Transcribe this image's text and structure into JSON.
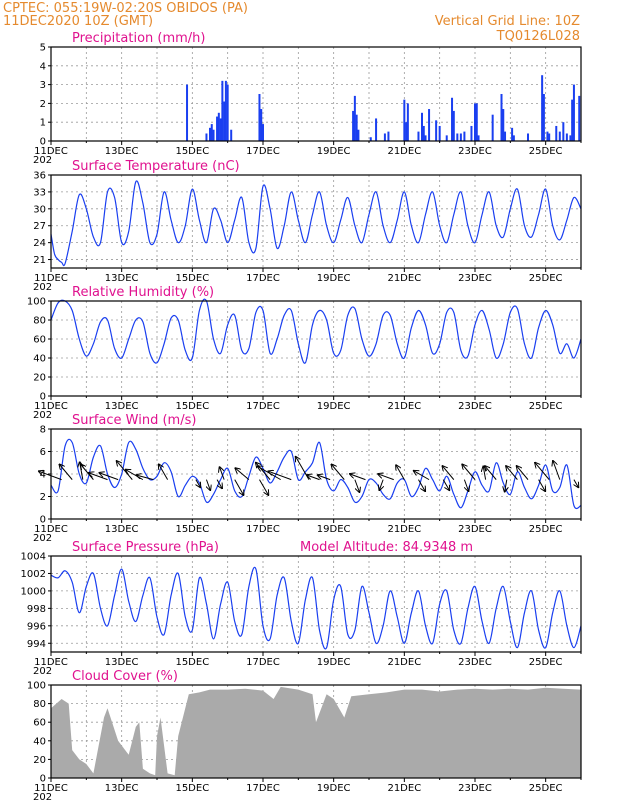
{
  "header": {
    "station": "CPTEC:  055:19W-02:20S   OBIDOS (PA)",
    "run": "11DEC2020 10Z (GMT)",
    "grid_note": "Vertical Grid Line: 10Z",
    "code": "TQ0126L028"
  },
  "x_axis": {
    "dates": [
      "11DEC",
      "13DEC",
      "15DEC",
      "17DEC",
      "19DEC",
      "21DEC",
      "23DEC",
      "25DEC"
    ],
    "cut_label": "202"
  },
  "colors": {
    "line": "#1a3ff0",
    "bars": "#1a3ff0",
    "cloud": "#aaaaaa",
    "title": "#e0128f",
    "header": "#e58a2e",
    "grid": "#9a9a9a"
  },
  "chart_data": [
    {
      "id": "precip",
      "type": "bar",
      "title": "Precipitation (mm/h)",
      "ylim": [
        0,
        5
      ],
      "yticks": [
        "0",
        "1",
        "2",
        "3",
        "4",
        "5"
      ],
      "x_unit": "day offset from 11DEC 10Z",
      "x": [
        3.85,
        4.4,
        4.5,
        4.55,
        4.6,
        4.7,
        4.75,
        4.8,
        4.85,
        4.9,
        4.95,
        5.0,
        5.1,
        5.9,
        5.95,
        6.0,
        8.55,
        8.6,
        8.65,
        8.7,
        9.05,
        9.2,
        9.45,
        9.55,
        10.0,
        10.05,
        10.1,
        10.4,
        10.5,
        10.55,
        10.6,
        10.7,
        10.9,
        11.0,
        11.2,
        11.35,
        11.4,
        11.5,
        11.6,
        11.7,
        11.9,
        12.0,
        12.05,
        12.1,
        12.5,
        12.75,
        12.8,
        12.85,
        13.05,
        13.1,
        13.5,
        13.9,
        13.95,
        14.05,
        14.1,
        14.3,
        14.4,
        14.5,
        14.6,
        14.7,
        14.75,
        14.8,
        14.95
      ],
      "values": [
        3.0,
        0.4,
        0.7,
        0.9,
        0.6,
        1.3,
        1.5,
        1.2,
        3.2,
        2.1,
        3.2,
        3.0,
        0.6,
        2.5,
        1.7,
        0.9,
        1.6,
        2.4,
        1.4,
        0.6,
        0.2,
        1.2,
        0.4,
        0.5,
        2.2,
        1.0,
        2.0,
        0.5,
        1.5,
        0.8,
        0.3,
        1.7,
        1.1,
        0.8,
        0.3,
        2.3,
        1.6,
        0.4,
        0.4,
        0.5,
        0.8,
        2.0,
        2.0,
        0.3,
        1.4,
        2.5,
        1.7,
        0.5,
        0.7,
        0.3,
        0.4,
        3.5,
        2.5,
        0.5,
        0.4,
        0.8,
        0.5,
        1.0,
        0.4,
        0.3,
        2.2,
        3.0,
        2.4
      ]
    },
    {
      "id": "temp",
      "type": "line",
      "title": "Surface Temperature (nC)",
      "ylim": [
        19.5,
        36
      ],
      "yticks": [
        "21",
        "24",
        "27",
        "30",
        "33",
        "36"
      ],
      "x_unit": "day offset from 11DEC 10Z",
      "x": [
        0,
        0.1,
        0.2,
        0.3,
        0.4,
        0.6,
        0.8,
        1.0,
        1.2,
        1.4,
        1.6,
        1.8,
        2.0,
        2.2,
        2.4,
        2.6,
        2.8,
        3.0,
        3.2,
        3.4,
        3.6,
        3.8,
        4.0,
        4.2,
        4.4,
        4.6,
        4.8,
        5.0,
        5.2,
        5.4,
        5.6,
        5.8,
        6.0,
        6.2,
        6.4,
        6.6,
        6.8,
        7.0,
        7.2,
        7.4,
        7.6,
        7.8,
        8.0,
        8.2,
        8.4,
        8.6,
        8.8,
        9.0,
        9.2,
        9.4,
        9.6,
        9.8,
        10.0,
        10.2,
        10.4,
        10.6,
        10.8,
        11.0,
        11.2,
        11.4,
        11.6,
        11.8,
        12.0,
        12.2,
        12.4,
        12.6,
        12.8,
        13.0,
        13.2,
        13.4,
        13.6,
        13.8,
        14.0,
        14.2,
        14.4,
        14.6,
        14.8,
        15.0
      ],
      "values": [
        25.5,
        22,
        21,
        20.5,
        20.3,
        26,
        32.5,
        30,
        25,
        24,
        33,
        32,
        24,
        26,
        34.8,
        31,
        24,
        25.5,
        33,
        28,
        24,
        27,
        33.5,
        28,
        24,
        30,
        28,
        24,
        28,
        32,
        24,
        23,
        34,
        30,
        23,
        27,
        33,
        28,
        24,
        29,
        33,
        27,
        24,
        28,
        32,
        27,
        24,
        29,
        33,
        27,
        24,
        28,
        33,
        27,
        24,
        29,
        33,
        27,
        24,
        29,
        33,
        27,
        24,
        29,
        33,
        27,
        25,
        30,
        33.5,
        27,
        25,
        29,
        33.5,
        27,
        24.5,
        28,
        32,
        30
      ]
    },
    {
      "id": "rh",
      "type": "line",
      "title": "Relative Humidity (%)",
      "ylim": [
        0,
        100
      ],
      "yticks": [
        "0",
        "20",
        "40",
        "60",
        "80",
        "100"
      ],
      "x_unit": "day offset from 11DEC 10Z",
      "x": [
        0,
        0.2,
        0.4,
        0.6,
        0.8,
        1.0,
        1.2,
        1.4,
        1.6,
        1.8,
        2.0,
        2.2,
        2.4,
        2.6,
        2.8,
        3.0,
        3.2,
        3.4,
        3.6,
        3.8,
        4.0,
        4.2,
        4.4,
        4.6,
        4.8,
        5.0,
        5.2,
        5.4,
        5.6,
        5.8,
        6.0,
        6.2,
        6.4,
        6.6,
        6.8,
        7.0,
        7.2,
        7.4,
        7.6,
        7.8,
        8.0,
        8.2,
        8.4,
        8.6,
        8.8,
        9.0,
        9.2,
        9.4,
        9.6,
        9.8,
        10.0,
        10.2,
        10.4,
        10.6,
        10.8,
        11.0,
        11.2,
        11.4,
        11.6,
        11.8,
        12.0,
        12.2,
        12.4,
        12.6,
        12.8,
        13.0,
        13.2,
        13.4,
        13.6,
        13.8,
        14.0,
        14.2,
        14.4,
        14.6,
        14.8,
        15.0
      ],
      "values": [
        80,
        98,
        100,
        90,
        60,
        42,
        55,
        78,
        80,
        50,
        40,
        60,
        80,
        78,
        45,
        35,
        55,
        82,
        80,
        48,
        40,
        90,
        100,
        60,
        45,
        75,
        85,
        48,
        50,
        88,
        90,
        45,
        60,
        85,
        90,
        55,
        35,
        75,
        90,
        80,
        45,
        48,
        85,
        92,
        60,
        42,
        55,
        85,
        85,
        55,
        40,
        72,
        90,
        75,
        45,
        55,
        88,
        88,
        48,
        42,
        75,
        90,
        70,
        40,
        55,
        88,
        92,
        55,
        40,
        72,
        90,
        75,
        45,
        55,
        40,
        60
      ]
    },
    {
      "id": "wind",
      "type": "line",
      "title": "Surface Wind (m/s)",
      "ylim": [
        0,
        8
      ],
      "yticks": [
        "0",
        "2",
        "4",
        "6",
        "8"
      ],
      "x_unit": "day offset from 11DEC 10Z",
      "x": [
        0,
        0.2,
        0.4,
        0.6,
        0.8,
        1.0,
        1.2,
        1.4,
        1.6,
        1.8,
        2.0,
        2.2,
        2.4,
        2.6,
        2.8,
        3.0,
        3.2,
        3.4,
        3.6,
        3.8,
        4.0,
        4.2,
        4.4,
        4.6,
        4.8,
        5.0,
        5.2,
        5.4,
        5.6,
        5.8,
        6.0,
        6.2,
        6.4,
        6.6,
        6.8,
        7.0,
        7.2,
        7.4,
        7.6,
        7.8,
        8.0,
        8.2,
        8.4,
        8.6,
        8.8,
        9.0,
        9.2,
        9.4,
        9.6,
        9.8,
        10.0,
        10.2,
        10.4,
        10.6,
        10.8,
        11.0,
        11.2,
        11.4,
        11.6,
        11.8,
        12.0,
        12.2,
        12.4,
        12.6,
        12.8,
        13.0,
        13.2,
        13.4,
        13.6,
        13.8,
        14.0,
        14.2,
        14.4,
        14.6,
        14.8,
        15.0
      ],
      "values": [
        3,
        2.5,
        6.5,
        6.8,
        4,
        3.2,
        5.5,
        6.5,
        4,
        2.8,
        4,
        6.8,
        6.2,
        4.5,
        3.5,
        3.8,
        5,
        4.2,
        2,
        3,
        3.8,
        3.2,
        1.5,
        2.2,
        3.5,
        4.5,
        2.5,
        2,
        3.8,
        5.5,
        4.5,
        3.2,
        4.2,
        5.5,
        6,
        3.5,
        4.2,
        5,
        6.8,
        3.5,
        2.5,
        3.5,
        2.8,
        1.5,
        2,
        3.5,
        3.2,
        2.2,
        1.8,
        3.2,
        3.5,
        2,
        2.8,
        4.5,
        3.5,
        2.5,
        3.8,
        2.2,
        1,
        2.5,
        4.2,
        3,
        2.5,
        5,
        3.2,
        2.2,
        4.2,
        2.8,
        1.8,
        3,
        4.8,
        2.5,
        2.8,
        4.8,
        1.2,
        1.2
      ]
    },
    {
      "id": "wind_vectors",
      "type": "scatter",
      "title": "",
      "x_unit": "day offset from 11DEC 10Z",
      "x": [
        0.3,
        0.6,
        0.9,
        1.2,
        1.6,
        1.9,
        2.3,
        2.6,
        2.9,
        3.3,
        4.1,
        4.4,
        4.7,
        4.9,
        5.2,
        5.6,
        5.9,
        6.2,
        6.5,
        6.8,
        7.3,
        7.6,
        7.9,
        8.3,
        8.6,
        8.9,
        9.4,
        9.7,
        10.0,
        10.4,
        10.7,
        11.1,
        11.4,
        11.7,
        12.0,
        12.3,
        12.6,
        12.9,
        13.2,
        13.5,
        13.8,
        14.1,
        14.4,
        14.8
      ],
      "direction_deg": [
        200,
        230,
        260,
        230,
        200,
        200,
        230,
        210,
        195,
        240,
        60,
        70,
        60,
        250,
        60,
        220,
        60,
        230,
        210,
        200,
        240,
        200,
        200,
        230,
        70,
        200,
        110,
        200,
        240,
        60,
        210,
        60,
        230,
        70,
        230,
        260,
        230,
        100,
        230,
        230,
        60,
        230,
        250,
        60
      ],
      "speed": [
        2.2,
        1.8,
        1.6,
        1.8,
        1.8,
        1.8,
        2.2,
        1.8,
        1.6,
        1.6,
        0.8,
        1,
        0.9,
        1.2,
        1.6,
        1.6,
        1.6,
        2.0,
        2.4,
        2.2,
        2.4,
        1.2,
        1.2,
        1.8,
        1.2,
        1.5,
        1.0,
        1.5,
        1.5,
        1.2,
        1.6,
        1.1,
        1.6,
        1.1,
        1.8,
        1.2,
        1.6,
        1.1,
        1.6,
        1.6,
        1.2,
        2.0,
        1.8,
        0.8
      ]
    },
    {
      "id": "pressure",
      "type": "line",
      "title": "Surface Pressure (hPa)",
      "subtitle": "Model Altitude: 84.9348 m",
      "ylim": [
        993,
        1004
      ],
      "yticks": [
        "994",
        "996",
        "998",
        "1000",
        "1002",
        "1004"
      ],
      "x_unit": "day offset from 11DEC 10Z",
      "x": [
        0,
        0.2,
        0.4,
        0.6,
        0.8,
        1.0,
        1.2,
        1.4,
        1.6,
        1.8,
        2.0,
        2.2,
        2.4,
        2.6,
        2.8,
        3.0,
        3.2,
        3.4,
        3.6,
        3.8,
        4.0,
        4.2,
        4.4,
        4.6,
        4.8,
        5.0,
        5.2,
        5.4,
        5.6,
        5.8,
        6.0,
        6.2,
        6.4,
        6.6,
        6.8,
        7.0,
        7.2,
        7.4,
        7.6,
        7.8,
        8.0,
        8.2,
        8.4,
        8.6,
        8.8,
        9.0,
        9.2,
        9.4,
        9.6,
        9.8,
        10.0,
        10.2,
        10.4,
        10.6,
        10.8,
        11.0,
        11.2,
        11.4,
        11.6,
        11.8,
        12.0,
        12.2,
        12.4,
        12.6,
        12.8,
        13.0,
        13.2,
        13.4,
        13.6,
        13.8,
        14.0,
        14.2,
        14.4,
        14.6,
        14.8,
        15.0
      ],
      "values": [
        1001.8,
        1001.5,
        1002.3,
        1001,
        997.5,
        1000.5,
        1002,
        998,
        996,
        999.5,
        1002.5,
        998.8,
        996.5,
        999.5,
        1001.5,
        997,
        995,
        999.5,
        1002,
        997,
        995.5,
        1001.5,
        998.5,
        994.5,
        998.5,
        1001,
        996.5,
        995,
        1000.5,
        1002.5,
        996,
        994.5,
        999.5,
        1001.5,
        996.5,
        994,
        999,
        1001.5,
        995.5,
        993.5,
        999,
        1000.5,
        995,
        995.5,
        1000.5,
        997.5,
        994,
        996,
        1000,
        997,
        994,
        997.5,
        1000,
        996,
        994,
        998.5,
        1000,
        995.5,
        994,
        998,
        1000.5,
        996.5,
        994,
        998,
        1000.5,
        996.5,
        993.5,
        997.5,
        1000,
        995.5,
        993.5,
        997.5,
        1000,
        996,
        993.5,
        996
      ]
    },
    {
      "id": "cloud",
      "type": "area",
      "title": "Cloud Cover (%)",
      "ylim": [
        0,
        100
      ],
      "yticks": [
        "0",
        "20",
        "40",
        "60",
        "80",
        "100"
      ],
      "x_unit": "day offset from 11DEC 10Z",
      "x": [
        0,
        0.3,
        0.5,
        0.6,
        0.8,
        1.0,
        1.2,
        1.5,
        1.6,
        1.9,
        2.2,
        2.4,
        2.5,
        2.6,
        2.8,
        2.95,
        3.0,
        3.1,
        3.3,
        3.5,
        3.6,
        3.9,
        4.2,
        4.5,
        5.0,
        5.5,
        6.0,
        6.3,
        6.5,
        7.0,
        7.4,
        7.5,
        7.8,
        8.0,
        8.3,
        8.5,
        9.0,
        9.5,
        10.0,
        10.5,
        11.0,
        11.5,
        12.0,
        12.5,
        13.0,
        13.5,
        14.0,
        14.5,
        15.0
      ],
      "values": [
        75,
        85,
        80,
        30,
        20,
        15,
        5,
        65,
        75,
        40,
        25,
        55,
        60,
        10,
        5,
        3,
        45,
        65,
        5,
        3,
        45,
        90,
        92,
        95,
        95,
        96,
        94,
        85,
        98,
        95,
        90,
        60,
        90,
        85,
        65,
        88,
        90,
        92,
        95,
        95,
        93,
        95,
        96,
        95,
        96,
        95,
        97,
        96,
        95
      ]
    }
  ]
}
